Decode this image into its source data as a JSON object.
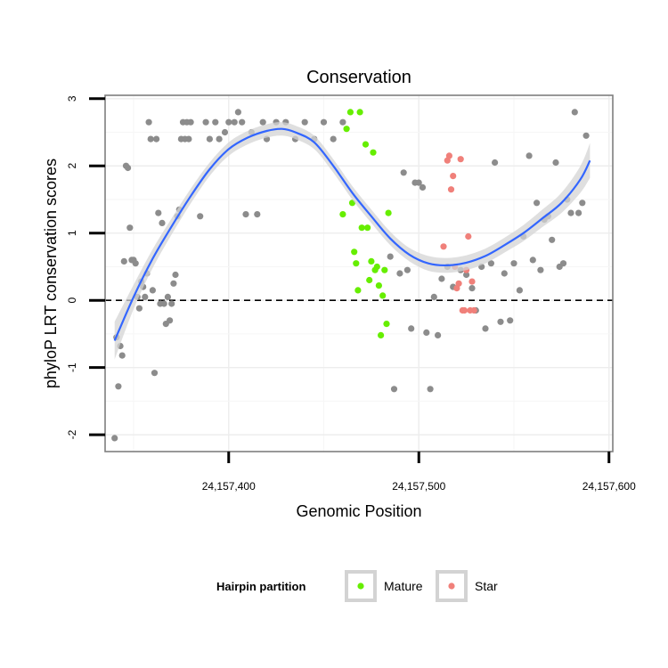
{
  "chart_data": {
    "type": "scatter",
    "title": "Conservation",
    "xlabel": "Genomic Position",
    "ylabel": "phyloP LRT conservation scores",
    "xlim": [
      24157335,
      24157602
    ],
    "ylim": [
      -2.25,
      3.05
    ],
    "x_ticks": [
      24157400,
      24157500,
      24157600
    ],
    "x_tick_labels": [
      "24,157,400",
      "24,157,500",
      "24,157,600"
    ],
    "y_ticks": [
      -2,
      -1,
      0,
      1,
      2,
      3
    ],
    "y_tick_labels": [
      "-2",
      "-1",
      "0",
      "1",
      "2",
      "3"
    ],
    "reference_line": {
      "y": 0,
      "style": "dashed"
    },
    "grid": true,
    "legend": {
      "title": "Hairpin partition",
      "position": "bottom",
      "entries": [
        {
          "label": "Mature",
          "color": "#66ee00"
        },
        {
          "label": "Star",
          "color": "#f0807a"
        }
      ]
    },
    "colors": {
      "other": "#8c8c8c",
      "mature": "#66ee00",
      "star": "#f0807a",
      "smooth": "#3366ff",
      "ribbon": "#d4d4d4"
    },
    "series": [
      {
        "name": "Other",
        "x": [
          24157340,
          24157341,
          24157342,
          24157343,
          24157344,
          24157345,
          24157346,
          24157347,
          24157348,
          24157349,
          24157350,
          24157351,
          24157352,
          24157353,
          24157354,
          24157355,
          24157356,
          24157357,
          24157358,
          24157359,
          24157360,
          24157361,
          24157362,
          24157363,
          24157364,
          24157365,
          24157366,
          24157367,
          24157368,
          24157369,
          24157370,
          24157371,
          24157372,
          24157373,
          24157374,
          24157375,
          24157376,
          24157377,
          24157378,
          24157379,
          24157380,
          24157385,
          24157388,
          24157390,
          24157393,
          24157395,
          24157398,
          24157400,
          24157403,
          24157405,
          24157407,
          24157409,
          24157412,
          24157415,
          24157418,
          24157420,
          24157425,
          24157430,
          24157435,
          24157440,
          24157445,
          24157450,
          24157455,
          24157460,
          24157485,
          24157487,
          24157490,
          24157492,
          24157494,
          24157496,
          24157498,
          24157500,
          24157502,
          24157504,
          24157506,
          24157508,
          24157510,
          24157512,
          24157515,
          24157518,
          24157522,
          24157525,
          24157528,
          24157530,
          24157533,
          24157535,
          24157538,
          24157540,
          24157543,
          24157545,
          24157548,
          24157550,
          24157553,
          24157555,
          24157558,
          24157560,
          24157562,
          24157564,
          24157566,
          24157568,
          24157570,
          24157572,
          24157574,
          24157576,
          24157578,
          24157580,
          24157582,
          24157584,
          24157586,
          24157588
        ],
        "y": [
          -2.05,
          -0.55,
          -1.28,
          -0.68,
          -0.82,
          0.58,
          2.0,
          1.97,
          1.08,
          0.6,
          0.6,
          0.55,
          0.05,
          -0.12,
          0.28,
          0.2,
          0.05,
          0.4,
          2.65,
          2.4,
          0.15,
          -1.08,
          2.4,
          1.3,
          -0.05,
          1.15,
          -0.05,
          -0.35,
          0.05,
          -0.3,
          -0.05,
          0.25,
          0.38,
          1.25,
          1.35,
          2.4,
          2.65,
          2.4,
          2.65,
          2.4,
          2.65,
          1.25,
          2.65,
          2.4,
          2.65,
          2.4,
          2.5,
          2.65,
          2.65,
          2.8,
          2.65,
          1.28,
          2.5,
          1.28,
          2.65,
          2.4,
          2.65,
          2.65,
          2.4,
          2.65,
          2.4,
          2.65,
          2.4,
          2.65,
          0.65,
          -1.32,
          0.4,
          1.9,
          0.45,
          -0.42,
          1.75,
          1.75,
          1.68,
          -0.48,
          -1.32,
          0.05,
          -0.52,
          0.32,
          0.5,
          0.2,
          0.45,
          0.38,
          0.18,
          -0.15,
          0.5,
          -0.42,
          0.55,
          2.05,
          -0.32,
          0.4,
          -0.3,
          0.55,
          0.15,
          0.95,
          2.15,
          0.6,
          1.45,
          0.45,
          1.2,
          1.25,
          0.9,
          2.05,
          0.5,
          0.55,
          1.5,
          1.3,
          2.8,
          1.3,
          1.45,
          2.45
        ]
      },
      {
        "name": "Mature",
        "x": [
          24157460,
          24157462,
          24157464,
          24157465,
          24157466,
          24157467,
          24157468,
          24157469,
          24157470,
          24157472,
          24157473,
          24157474,
          24157475,
          24157476,
          24157477,
          24157478,
          24157479,
          24157480,
          24157481,
          24157482,
          24157483,
          24157484
        ],
        "y": [
          1.28,
          2.55,
          2.8,
          1.45,
          0.72,
          0.55,
          0.15,
          2.8,
          1.08,
          2.32,
          1.08,
          0.3,
          0.58,
          2.2,
          0.45,
          0.5,
          0.22,
          -0.52,
          0.07,
          0.45,
          -0.35,
          1.3
        ]
      },
      {
        "name": "Star",
        "x": [
          24157513,
          24157515,
          24157516,
          24157517,
          24157518,
          24157519,
          24157520,
          24157521,
          24157522,
          24157523,
          24157524,
          24157525,
          24157526,
          24157527,
          24157528,
          24157529
        ],
        "y": [
          0.8,
          2.08,
          2.15,
          1.65,
          1.85,
          0.5,
          0.18,
          0.25,
          2.1,
          -0.15,
          -0.15,
          0.45,
          0.95,
          -0.15,
          0.28,
          -0.15
        ]
      }
    ],
    "smooth": {
      "x": [
        24157340,
        24157350,
        24157360,
        24157370,
        24157380,
        24157390,
        24157400,
        24157410,
        24157420,
        24157428,
        24157435,
        24157445,
        24157455,
        24157465,
        24157475,
        24157485,
        24157495,
        24157505,
        24157515,
        24157525,
        24157535,
        24157545,
        24157555,
        24157565,
        24157575,
        24157585,
        24157590
      ],
      "y": [
        -0.6,
        0.05,
        0.62,
        1.1,
        1.55,
        1.95,
        2.25,
        2.42,
        2.52,
        2.55,
        2.5,
        2.35,
        2.0,
        1.6,
        1.25,
        0.92,
        0.68,
        0.55,
        0.52,
        0.56,
        0.66,
        0.82,
        1.0,
        1.22,
        1.45,
        1.8,
        2.08
      ],
      "band": [
        0.28,
        0.18,
        0.14,
        0.12,
        0.11,
        0.1,
        0.1,
        0.1,
        0.1,
        0.1,
        0.1,
        0.1,
        0.1,
        0.1,
        0.1,
        0.1,
        0.1,
        0.11,
        0.11,
        0.11,
        0.11,
        0.11,
        0.12,
        0.13,
        0.15,
        0.2,
        0.26
      ]
    }
  }
}
